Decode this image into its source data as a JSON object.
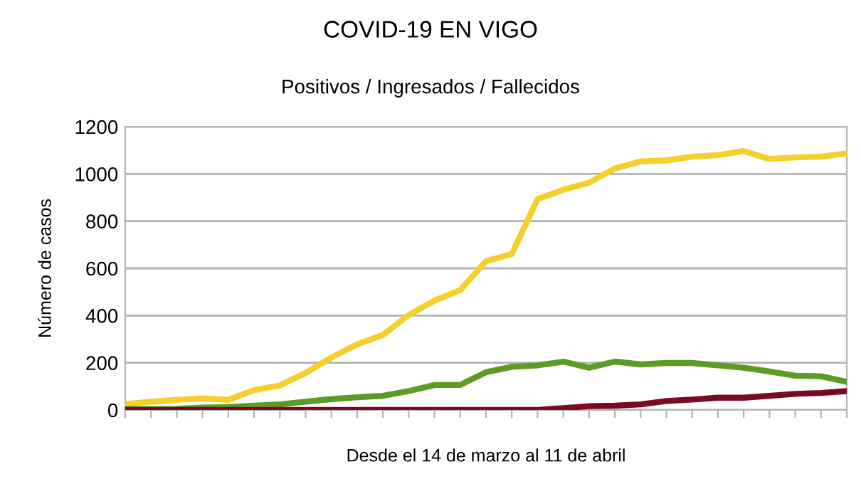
{
  "chart_data": {
    "type": "line",
    "title": "COVID-19 EN VIGO",
    "subtitle": "Positivos / Ingresados / Fallecidos",
    "xlabel": "Desde el 14 de marzo al 11 de abril",
    "ylabel": "Número de casos",
    "categories": [
      null,
      null,
      null,
      null,
      null,
      null,
      null,
      null,
      null,
      null,
      null,
      null,
      null,
      null,
      null,
      null,
      null,
      null,
      null,
      null,
      null,
      null,
      null,
      null,
      null,
      null,
      null,
      null,
      null
    ],
    "series": [
      {
        "color": "#f5cf2c",
        "values": [
          25,
          35,
          43,
          49,
          43,
          84,
          104,
          157,
          222,
          278,
          318,
          402,
          463,
          508,
          630,
          661,
          893,
          933,
          963,
          1023,
          1053,
          1057,
          1073,
          1080,
          1097,
          1063,
          1070,
          1073,
          1087
        ]
      },
      {
        "color": "#5b9b26",
        "values": [
          4,
          4,
          5,
          10,
          12,
          18,
          24,
          35,
          46,
          54,
          60,
          80,
          106,
          106,
          160,
          183,
          189,
          205,
          179,
          205,
          193,
          199,
          199,
          189,
          179,
          163,
          145,
          143,
          119
        ]
      },
      {
        "color": "#7a0a24",
        "values": [
          0,
          0,
          0,
          0,
          0,
          0,
          0,
          0,
          0,
          0,
          0,
          0,
          0,
          0,
          0,
          0,
          0,
          8,
          16,
          18,
          24,
          38,
          44,
          52,
          52,
          60,
          68,
          72,
          80
        ]
      }
    ],
    "ylim": [
      0,
      1200
    ],
    "yticks": [
      0,
      200,
      400,
      600,
      800,
      1000,
      1200
    ],
    "grid": "y",
    "legend": false,
    "marker": "none",
    "line_style": "solid"
  }
}
